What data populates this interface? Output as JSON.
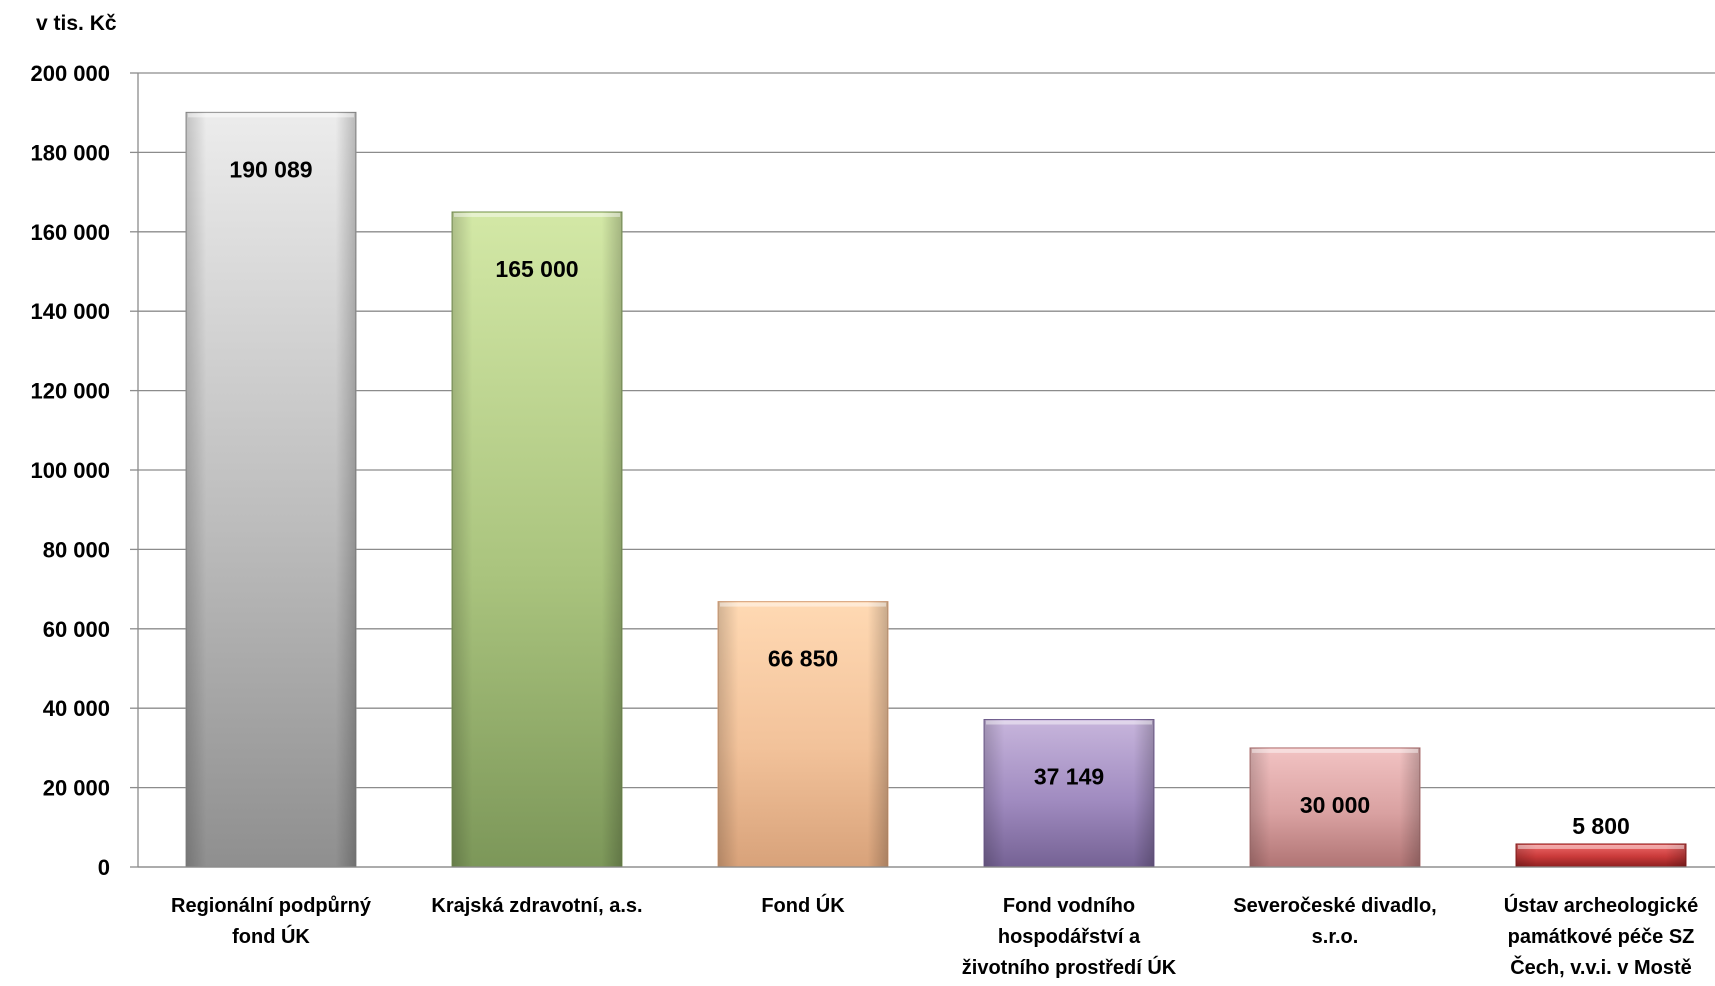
{
  "chart_data": {
    "type": "bar",
    "unit_label": "v tis. Kč",
    "categories": [
      [
        "Regionální podpůrný",
        "fond ÚK"
      ],
      [
        "Krajská zdravotní, a.s."
      ],
      [
        "Fond ÚK"
      ],
      [
        "Fond vodního",
        "hospodářství a",
        "životního prostředí ÚK"
      ],
      [
        "Severočeské divadlo,",
        "s.r.o."
      ],
      [
        "Ústav archeologické",
        "památkové péče SZ",
        "Čech, v.v.i. v Mostě"
      ]
    ],
    "values": [
      190089,
      165000,
      66850,
      37149,
      30000,
      5800
    ],
    "value_labels": [
      "190 089",
      "165 000",
      "66 850",
      "37 149",
      "30 000",
      "5 800"
    ],
    "ylim": [
      0,
      200000
    ],
    "yticks": [
      0,
      20000,
      40000,
      60000,
      80000,
      100000,
      120000,
      140000,
      160000,
      180000,
      200000
    ],
    "ytick_labels": [
      "0",
      "20 000",
      "40 000",
      "60 000",
      "80 000",
      "100 000",
      "120 000",
      "140 000",
      "160 000",
      "180 000",
      "200 000"
    ],
    "grid": true,
    "legend": "none",
    "bar_colors": [
      [
        "#ececec",
        "#bcbcbc",
        "#8f8f8f"
      ],
      [
        "#d3e8a6",
        "#aac47e",
        "#7c9759"
      ],
      [
        "#ffd9b3",
        "#f2c29a",
        "#d8a27a"
      ],
      [
        "#c7b5dc",
        "#a08bc0",
        "#756294"
      ],
      [
        "#f2c3c3",
        "#d9a1a1",
        "#b07474"
      ],
      [
        "#ef6b6b",
        "#c93a3a",
        "#8e1f1f"
      ]
    ]
  }
}
